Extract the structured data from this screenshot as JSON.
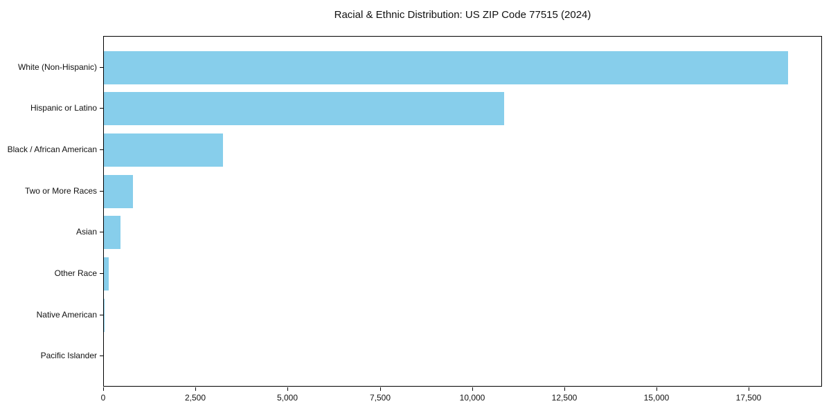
{
  "chart_data": {
    "type": "bar",
    "orientation": "horizontal",
    "title": "Racial & Ethnic Distribution: US ZIP Code 77515 (2024)",
    "categories": [
      "White (Non-Hispanic)",
      "Hispanic or Latino",
      "Black / African American",
      "Two or More Races",
      "Asian",
      "Other Race",
      "Native American",
      "Pacific Islander"
    ],
    "values": [
      18550,
      10850,
      3230,
      785,
      450,
      130,
      15,
      0
    ],
    "bar_color": "#87CEEB",
    "xlabel": "",
    "ylabel": "",
    "xlim": [
      0,
      19480
    ],
    "x_ticks": [
      0,
      2500,
      5000,
      7500,
      10000,
      12500,
      15000,
      17500
    ],
    "x_tick_labels": [
      "0",
      "2,500",
      "5,000",
      "7,500",
      "10,000",
      "12,500",
      "15,000",
      "17,500"
    ],
    "grid": false,
    "legend": null
  }
}
